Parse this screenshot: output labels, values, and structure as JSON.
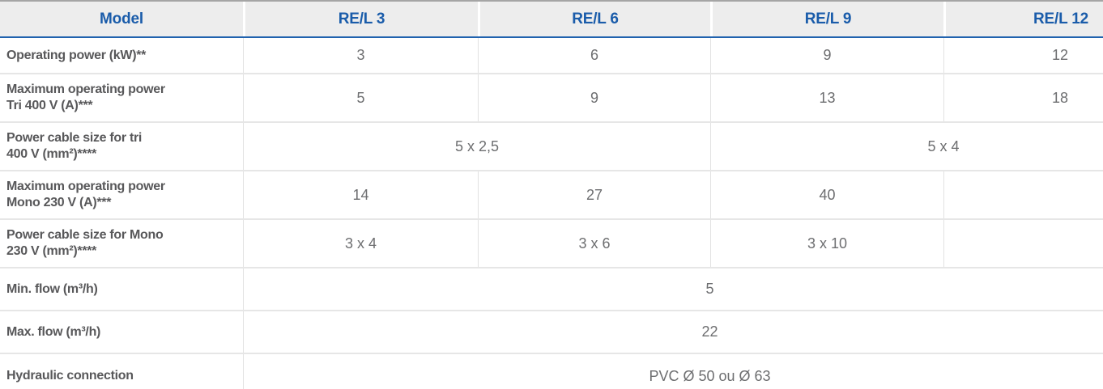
{
  "table": {
    "header": {
      "model_label": "Model",
      "columns": [
        "RE/L 3",
        "RE/L 6",
        "RE/L 9",
        "RE/L 12"
      ]
    },
    "rows": [
      {
        "label": "Operating power (kW)**",
        "values": [
          "3",
          "6",
          "9",
          "12"
        ]
      },
      {
        "label": "Maximum operating power\nTri 400 V (A)***",
        "values": [
          "5",
          "9",
          "13",
          "18"
        ]
      },
      {
        "label": "Power cable size for tri\n400 V (mm²)****",
        "values": [
          "5 x 2,5",
          "5 x 4"
        ],
        "spans": [
          2,
          2
        ]
      },
      {
        "label": "Maximum operating power\nMono 230 V (A)***",
        "values": [
          "14",
          "27",
          "40",
          ""
        ]
      },
      {
        "label": "Power cable size for Mono\n230 V (mm²)****",
        "values": [
          "3 x 4",
          "3 x 6",
          "3 x 10",
          ""
        ]
      },
      {
        "label": "Min. flow (m³/h)",
        "values": [
          "5"
        ],
        "spans": [
          4
        ]
      },
      {
        "label": "Max. flow (m³/h)",
        "values": [
          "22"
        ],
        "spans": [
          4
        ]
      },
      {
        "label": "Hydraulic connection",
        "values": [
          "PVC Ø 50 ou Ø 63"
        ],
        "spans": [
          4
        ]
      }
    ]
  },
  "colors": {
    "accent_blue_line": "#2062ae",
    "header_text_blue": "#1a5caa",
    "header_bg": "#ededed",
    "label_text": "#58585a",
    "value_text": "#6d6e70",
    "row_border": "#e6e6e6",
    "top_border": "#a5a5a5",
    "cell_divider": "#e2e2e2"
  }
}
